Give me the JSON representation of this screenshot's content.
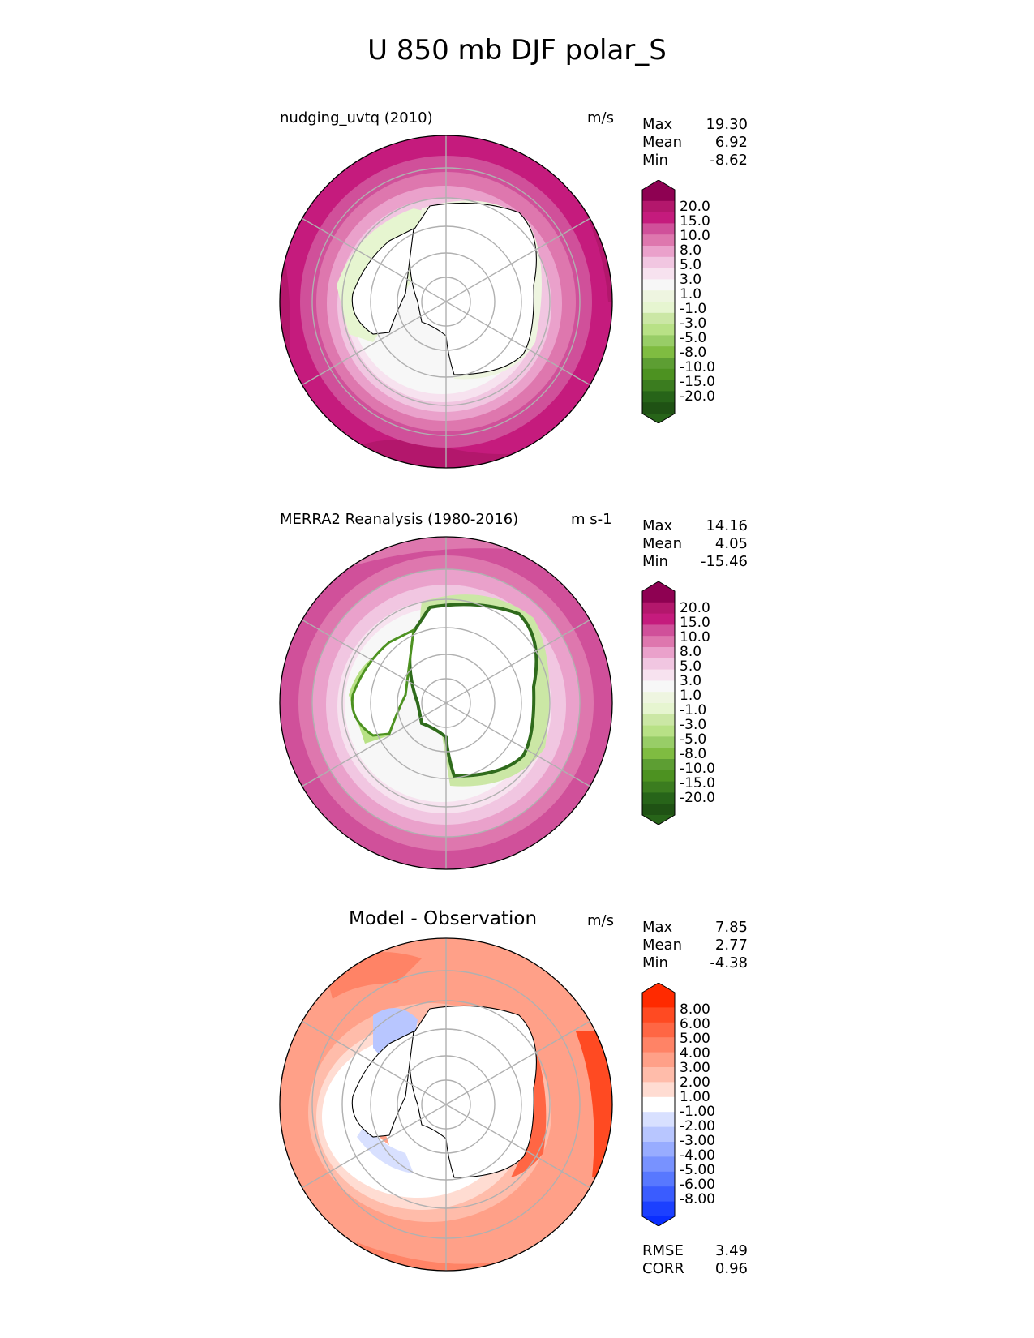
{
  "figure": {
    "title": "U 850 mb DJF polar_S"
  },
  "panels": [
    {
      "title": "nudging_uvtq (2010)",
      "units": "m/s",
      "stats": [
        {
          "label": "Max",
          "value": "19.30"
        },
        {
          "label": "Mean",
          "value": "6.92"
        },
        {
          "label": "Min",
          "value": "-8.62"
        }
      ],
      "colorbar": {
        "labels": [
          "20.0",
          "15.0",
          "10.0",
          "8.0",
          "5.0",
          "3.0",
          "1.0",
          "-1.0",
          "-3.0",
          "-5.0",
          "-8.0",
          "-10.0",
          "-15.0",
          "-20.0"
        ],
        "colors": [
          "#8e0152",
          "#b3176c",
          "#c51b7d",
          "#d0509a",
          "#de77ae",
          "#eaa1cb",
          "#f1c6e1",
          "#f7e2ef",
          "#f7f7f7",
          "#eef5e0",
          "#e6f5d0",
          "#cbe7a5",
          "#b8e186",
          "#98cd67",
          "#7fbc41",
          "#5d9e33",
          "#4d9221",
          "#3b7c1f",
          "#276419",
          "#1f5214"
        ],
        "ext_top": "#8e0152",
        "ext_bottom": "#276419"
      }
    },
    {
      "title": "MERRA2 Reanalysis (1980-2016)",
      "units": "m s-1",
      "stats": [
        {
          "label": "Max",
          "value": "14.16"
        },
        {
          "label": "Mean",
          "value": "4.05"
        },
        {
          "label": "Min",
          "value": "-15.46"
        }
      ],
      "colorbar": {
        "labels": [
          "20.0",
          "15.0",
          "10.0",
          "8.0",
          "5.0",
          "3.0",
          "1.0",
          "-1.0",
          "-3.0",
          "-5.0",
          "-8.0",
          "-10.0",
          "-15.0",
          "-20.0"
        ],
        "colors": [
          "#8e0152",
          "#b3176c",
          "#c51b7d",
          "#d0509a",
          "#de77ae",
          "#eaa1cb",
          "#f1c6e1",
          "#f7e2ef",
          "#f7f7f7",
          "#eef5e0",
          "#e6f5d0",
          "#cbe7a5",
          "#b8e186",
          "#98cd67",
          "#7fbc41",
          "#5d9e33",
          "#4d9221",
          "#3b7c1f",
          "#276419",
          "#1f5214"
        ],
        "ext_top": "#8e0152",
        "ext_bottom": "#276419"
      }
    },
    {
      "title": "Model - Observation",
      "units": "m/s",
      "stats": [
        {
          "label": "Max",
          "value": "7.85"
        },
        {
          "label": "Mean",
          "value": "2.77"
        },
        {
          "label": "Min",
          "value": "-4.38"
        }
      ],
      "metrics": [
        {
          "label": "RMSE",
          "value": "3.49"
        },
        {
          "label": "CORR",
          "value": "0.96"
        }
      ],
      "colorbar": {
        "labels": [
          "8.00",
          "6.00",
          "5.00",
          "4.00",
          "3.00",
          "2.00",
          "1.00",
          "-1.00",
          "-2.00",
          "-3.00",
          "-4.00",
          "-5.00",
          "-6.00",
          "-8.00"
        ],
        "colors": [
          "#ff2a00",
          "#ff4a22",
          "#ff6644",
          "#ff8366",
          "#ffa088",
          "#ffbcaa",
          "#ffdcd2",
          "#ffffff",
          "#d8e0ff",
          "#b8c6ff",
          "#98acff",
          "#7892ff",
          "#5878ff",
          "#3a5cff",
          "#1c40ff"
        ],
        "ext_top": "#ff2a00",
        "ext_bottom": "#0a2eff"
      }
    }
  ]
}
